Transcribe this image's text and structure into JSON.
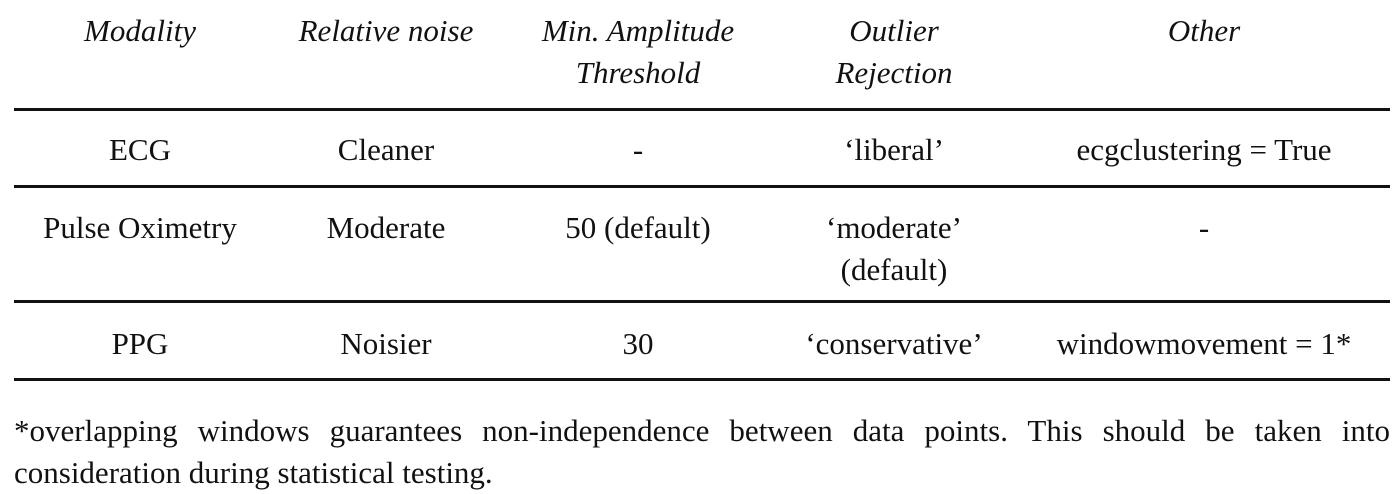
{
  "table": {
    "headers": [
      [
        "Modality"
      ],
      [
        "Relative noise"
      ],
      [
        "Min. Amplitude",
        "Threshold"
      ],
      [
        "Outlier",
        "Rejection"
      ],
      [
        "Other"
      ]
    ],
    "rows": [
      [
        [
          "ECG"
        ],
        [
          "Cleaner"
        ],
        [
          "-"
        ],
        [
          "‘liberal’"
        ],
        [
          "ecgclustering = True"
        ]
      ],
      [
        [
          "Pulse Oximetry"
        ],
        [
          "Moderate"
        ],
        [
          "50 (default)"
        ],
        [
          "‘moderate’",
          "(default)"
        ],
        [
          "-"
        ]
      ],
      [
        [
          "PPG"
        ],
        [
          "Noisier"
        ],
        [
          "30"
        ],
        [
          "‘conservative’"
        ],
        [
          "windowmovement = 1*"
        ]
      ]
    ]
  },
  "footnote": "*overlapping windows guarantees non-independence between data points. This should be taken into consideration during statistical testing."
}
